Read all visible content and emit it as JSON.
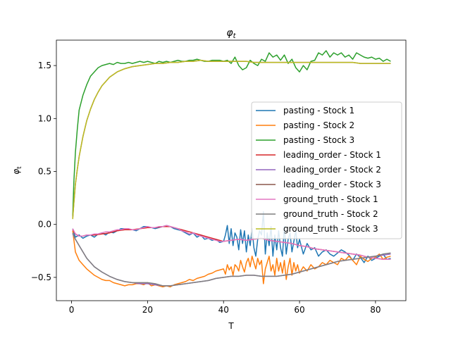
{
  "chart_data": {
    "type": "line",
    "title": "φ",
    "title_sub": "t",
    "xlabel": "T",
    "ylabel": "φ",
    "ylabel_sub": "t",
    "xlim": [
      -4,
      88
    ],
    "ylim": [
      -0.72,
      1.74
    ],
    "xticks": [
      0,
      20,
      40,
      60,
      80
    ],
    "yticks": [
      -0.5,
      0.0,
      0.5,
      1.0,
      1.5
    ],
    "ytick_labels": [
      "−0.5",
      "0.0",
      "0.5",
      "1.0",
      "1.5"
    ],
    "grid": false,
    "legend_position": "center-right",
    "series": [
      {
        "name": "pasting - Stock 1",
        "color": "#1f77b4",
        "x": [
          0.3,
          1,
          2,
          3,
          4,
          5,
          6,
          7,
          8,
          9,
          10,
          11,
          12,
          13,
          14,
          15,
          16,
          17,
          18,
          19,
          20,
          21,
          22,
          23,
          24,
          25,
          26,
          27,
          28,
          29,
          30,
          31,
          32,
          33,
          34,
          35,
          36,
          37,
          38,
          39,
          40,
          40.5,
          41,
          41.5,
          42,
          42.5,
          43,
          43.5,
          44,
          44.5,
          45,
          45.5,
          46,
          46.5,
          47,
          47.5,
          48,
          48.5,
          49,
          49.5,
          50,
          50.5,
          51,
          51.5,
          52,
          52.5,
          53,
          53.5,
          54,
          54.5,
          55,
          55.5,
          56,
          56.5,
          57,
          57.5,
          58,
          58.5,
          59,
          59.5,
          60,
          61,
          62,
          63,
          64,
          65,
          66,
          67,
          68,
          69,
          70,
          71,
          72,
          73,
          74,
          75,
          76,
          77,
          78,
          79,
          80,
          81,
          82,
          83,
          84
        ],
        "y": [
          -0.04,
          -0.12,
          -0.1,
          -0.13,
          -0.11,
          -0.1,
          -0.12,
          -0.09,
          -0.08,
          -0.1,
          -0.07,
          -0.08,
          -0.06,
          -0.04,
          -0.04,
          -0.05,
          -0.05,
          -0.06,
          -0.04,
          -0.02,
          -0.02,
          -0.03,
          -0.04,
          -0.03,
          -0.02,
          -0.01,
          -0.02,
          -0.04,
          -0.05,
          -0.06,
          -0.08,
          -0.1,
          -0.08,
          -0.12,
          -0.1,
          -0.14,
          -0.13,
          -0.15,
          -0.14,
          -0.17,
          -0.16,
          -0.1,
          -0.01,
          -0.18,
          -0.04,
          -0.2,
          -0.08,
          -0.12,
          -0.24,
          -0.05,
          -0.18,
          -0.06,
          -0.26,
          -0.1,
          -0.2,
          -0.04,
          -0.22,
          -0.3,
          -0.14,
          -0.06,
          -0.1,
          0.12,
          -0.28,
          -0.08,
          -0.2,
          -0.02,
          -0.3,
          -0.1,
          -0.24,
          -0.06,
          -0.22,
          -0.3,
          -0.02,
          -0.28,
          -0.14,
          -0.08,
          -0.26,
          -0.16,
          -0.06,
          -0.22,
          -0.14,
          -0.28,
          -0.18,
          -0.24,
          -0.22,
          -0.3,
          -0.26,
          -0.24,
          -0.28,
          -0.3,
          -0.27,
          -0.24,
          -0.26,
          -0.29,
          -0.34,
          -0.28,
          -0.31,
          -0.36,
          -0.3,
          -0.34,
          -0.32,
          -0.3,
          -0.28,
          -0.33,
          -0.32
        ]
      },
      {
        "name": "pasting - Stock 2",
        "color": "#ff7f0e",
        "x": [
          0.3,
          1,
          2,
          3,
          4,
          5,
          6,
          7,
          8,
          9,
          10,
          11,
          12,
          13,
          14,
          15,
          16,
          17,
          18,
          19,
          20,
          21,
          22,
          23,
          24,
          25,
          26,
          27,
          28,
          29,
          30,
          31,
          32,
          33,
          34,
          35,
          36,
          37,
          38,
          39,
          40,
          40.5,
          41,
          41.5,
          42,
          42.5,
          43,
          43.5,
          44,
          44.5,
          45,
          45.5,
          46,
          46.5,
          47,
          47.5,
          48,
          48.5,
          49,
          49.5,
          50,
          50.5,
          51,
          51.5,
          52,
          52.5,
          53,
          53.5,
          54,
          54.5,
          55,
          55.5,
          56,
          56.5,
          57,
          57.5,
          58,
          58.5,
          59,
          59.5,
          60,
          61,
          62,
          63,
          64,
          65,
          66,
          67,
          68,
          69,
          70,
          71,
          72,
          73,
          74,
          75,
          76,
          77,
          78,
          79,
          80,
          81,
          82,
          83,
          84
        ],
        "y": [
          -0.06,
          -0.26,
          -0.34,
          -0.38,
          -0.42,
          -0.45,
          -0.48,
          -0.5,
          -0.52,
          -0.53,
          -0.53,
          -0.55,
          -0.56,
          -0.57,
          -0.58,
          -0.57,
          -0.57,
          -0.56,
          -0.56,
          -0.57,
          -0.55,
          -0.58,
          -0.57,
          -0.58,
          -0.59,
          -0.58,
          -0.59,
          -0.57,
          -0.56,
          -0.55,
          -0.54,
          -0.52,
          -0.53,
          -0.51,
          -0.5,
          -0.49,
          -0.47,
          -0.46,
          -0.44,
          -0.43,
          -0.42,
          -0.47,
          -0.38,
          -0.43,
          -0.4,
          -0.48,
          -0.38,
          -0.4,
          -0.44,
          -0.34,
          -0.4,
          -0.45,
          -0.36,
          -0.32,
          -0.4,
          -0.3,
          -0.36,
          -0.42,
          -0.32,
          -0.38,
          -0.34,
          -0.56,
          -0.42,
          -0.36,
          -0.3,
          -0.44,
          -0.38,
          -0.48,
          -0.32,
          -0.44,
          -0.36,
          -0.46,
          -0.34,
          -0.52,
          -0.4,
          -0.32,
          -0.48,
          -0.36,
          -0.44,
          -0.38,
          -0.46,
          -0.4,
          -0.44,
          -0.38,
          -0.42,
          -0.4,
          -0.36,
          -0.38,
          -0.34,
          -0.36,
          -0.38,
          -0.32,
          -0.34,
          -0.3,
          -0.34,
          -0.38,
          -0.3,
          -0.33,
          -0.35,
          -0.32,
          -0.31,
          -0.28,
          -0.33,
          -0.31,
          -0.3
        ]
      },
      {
        "name": "pasting - Stock 3",
        "color": "#2ca02c",
        "x": [
          0.3,
          0.6,
          1,
          1.5,
          2,
          3,
          4,
          5,
          6,
          7,
          8,
          9,
          10,
          11,
          12,
          13,
          14,
          15,
          16,
          17,
          18,
          19,
          20,
          21,
          22,
          23,
          24,
          25,
          26,
          27,
          28,
          29,
          30,
          31,
          32,
          33,
          34,
          35,
          36,
          37,
          38,
          39,
          40,
          41,
          42,
          43,
          44,
          45,
          46,
          47,
          48,
          49,
          50,
          51,
          52,
          53,
          54,
          55,
          56,
          57,
          58,
          59,
          60,
          61,
          62,
          63,
          64,
          65,
          66,
          67,
          68,
          69,
          70,
          71,
          72,
          73,
          74,
          75,
          76,
          77,
          78,
          79,
          80,
          81,
          82,
          83,
          84
        ],
        "y": [
          0.08,
          0.4,
          0.68,
          0.9,
          1.08,
          1.22,
          1.32,
          1.4,
          1.44,
          1.48,
          1.5,
          1.51,
          1.52,
          1.51,
          1.53,
          1.52,
          1.52,
          1.53,
          1.52,
          1.53,
          1.54,
          1.53,
          1.54,
          1.53,
          1.52,
          1.54,
          1.53,
          1.54,
          1.53,
          1.54,
          1.55,
          1.54,
          1.54,
          1.55,
          1.55,
          1.56,
          1.55,
          1.54,
          1.54,
          1.55,
          1.55,
          1.55,
          1.54,
          1.55,
          1.52,
          1.58,
          1.5,
          1.46,
          1.48,
          1.55,
          1.52,
          1.5,
          1.56,
          1.54,
          1.62,
          1.58,
          1.6,
          1.55,
          1.6,
          1.52,
          1.56,
          1.48,
          1.44,
          1.5,
          1.46,
          1.54,
          1.55,
          1.62,
          1.6,
          1.64,
          1.58,
          1.62,
          1.6,
          1.62,
          1.58,
          1.6,
          1.56,
          1.62,
          1.6,
          1.58,
          1.57,
          1.58,
          1.56,
          1.57,
          1.54,
          1.56,
          1.54
        ]
      },
      {
        "name": "leading_order - Stock 1",
        "color": "#d62728",
        "x": [
          0.3,
          1,
          2,
          3,
          4,
          6,
          8,
          10,
          12,
          14,
          16,
          18,
          20,
          22,
          24,
          26,
          28,
          30,
          32,
          34,
          36,
          38,
          40,
          42,
          44,
          46,
          48,
          50,
          52,
          54,
          56,
          58,
          60,
          62,
          64,
          66,
          68,
          70,
          72,
          74,
          76,
          78,
          80,
          82,
          84
        ],
        "y": [
          -0.05,
          -0.09,
          -0.11,
          -0.11,
          -0.1,
          -0.1,
          -0.09,
          -0.08,
          -0.06,
          -0.05,
          -0.05,
          -0.04,
          -0.03,
          -0.03,
          -0.02,
          -0.02,
          -0.04,
          -0.06,
          -0.08,
          -0.1,
          -0.12,
          -0.14,
          -0.16,
          -0.15,
          -0.14,
          -0.15,
          -0.14,
          -0.13,
          -0.15,
          -0.16,
          -0.17,
          -0.18,
          -0.2,
          -0.21,
          -0.23,
          -0.24,
          -0.25,
          -0.26,
          -0.27,
          -0.28,
          -0.29,
          -0.31,
          -0.32,
          -0.33,
          -0.33
        ]
      },
      {
        "name": "leading_order - Stock 2",
        "color": "#9467bd",
        "x": [
          0.3,
          1,
          2,
          3,
          4,
          6,
          8,
          10,
          12,
          14,
          16,
          18,
          20,
          22,
          24,
          26,
          28,
          30,
          32,
          34,
          36,
          38,
          40,
          42,
          44,
          46,
          48,
          50,
          52,
          54,
          56,
          58,
          60,
          62,
          64,
          66,
          68,
          70,
          72,
          74,
          76,
          78,
          80,
          82,
          84
        ],
        "y": [
          -0.09,
          -0.14,
          -0.2,
          -0.26,
          -0.32,
          -0.4,
          -0.45,
          -0.49,
          -0.52,
          -0.54,
          -0.55,
          -0.56,
          -0.56,
          -0.57,
          -0.58,
          -0.58,
          -0.57,
          -0.56,
          -0.55,
          -0.54,
          -0.53,
          -0.51,
          -0.5,
          -0.49,
          -0.49,
          -0.48,
          -0.48,
          -0.49,
          -0.49,
          -0.49,
          -0.48,
          -0.47,
          -0.45,
          -0.43,
          -0.41,
          -0.39,
          -0.37,
          -0.35,
          -0.34,
          -0.33,
          -0.32,
          -0.31,
          -0.3,
          -0.29,
          -0.28
        ]
      },
      {
        "name": "leading_order - Stock 3",
        "color": "#8c564b",
        "x": [
          0.3,
          0.6,
          1,
          1.5,
          2,
          3,
          4,
          5,
          6,
          7,
          8,
          9,
          10,
          12,
          14,
          16,
          18,
          20,
          22,
          24,
          26,
          28,
          30,
          32,
          34,
          36,
          38,
          40,
          42,
          44,
          46,
          48,
          50,
          52,
          54,
          56,
          58,
          60,
          62,
          64,
          66,
          68,
          70,
          72,
          74,
          76,
          78,
          80,
          82,
          84
        ],
        "y": [
          0.06,
          0.2,
          0.38,
          0.52,
          0.64,
          0.83,
          0.98,
          1.09,
          1.18,
          1.25,
          1.31,
          1.35,
          1.39,
          1.44,
          1.47,
          1.49,
          1.5,
          1.51,
          1.52,
          1.52,
          1.53,
          1.53,
          1.54,
          1.54,
          1.55,
          1.54,
          1.54,
          1.54,
          1.54,
          1.54,
          1.54,
          1.53,
          1.53,
          1.53,
          1.53,
          1.53,
          1.53,
          1.53,
          1.53,
          1.53,
          1.53,
          1.53,
          1.53,
          1.53,
          1.53,
          1.52,
          1.52,
          1.52,
          1.52,
          1.52
        ]
      },
      {
        "name": "ground_truth - Stock 1",
        "color": "#e377c2",
        "x": [
          0.3,
          1,
          2,
          3,
          4,
          5,
          6,
          7,
          8,
          9,
          10,
          11,
          12,
          13,
          14,
          15,
          16,
          17,
          18,
          19,
          20,
          21,
          22,
          23,
          24,
          25,
          26,
          27,
          28,
          29,
          30,
          31,
          32,
          33,
          34,
          35,
          36,
          37,
          38,
          39,
          40,
          42,
          44,
          46,
          48,
          50,
          52,
          54,
          56,
          58,
          60,
          62,
          64,
          66,
          68,
          70,
          72,
          74,
          76,
          78,
          80,
          82,
          84
        ],
        "y": [
          -0.04,
          -0.09,
          -0.11,
          -0.11,
          -0.1,
          -0.1,
          -0.09,
          -0.09,
          -0.08,
          -0.07,
          -0.07,
          -0.06,
          -0.05,
          -0.05,
          -0.04,
          -0.04,
          -0.05,
          -0.05,
          -0.04,
          -0.03,
          -0.02,
          -0.03,
          -0.03,
          -0.02,
          -0.02,
          -0.01,
          -0.02,
          -0.03,
          -0.04,
          -0.06,
          -0.07,
          -0.09,
          -0.08,
          -0.1,
          -0.11,
          -0.12,
          -0.13,
          -0.14,
          -0.15,
          -0.16,
          -0.16,
          -0.15,
          -0.14,
          -0.15,
          -0.14,
          -0.13,
          -0.15,
          -0.16,
          -0.17,
          -0.18,
          -0.2,
          -0.21,
          -0.23,
          -0.24,
          -0.25,
          -0.26,
          -0.27,
          -0.28,
          -0.29,
          -0.31,
          -0.32,
          -0.33,
          -0.33
        ]
      },
      {
        "name": "ground_truth - Stock 2",
        "color": "#7f7f7f",
        "x": [
          0.3,
          1,
          2,
          3,
          4,
          6,
          8,
          10,
          12,
          14,
          16,
          18,
          20,
          22,
          24,
          26,
          28,
          30,
          32,
          34,
          36,
          38,
          40,
          42,
          44,
          46,
          48,
          50,
          52,
          54,
          56,
          58,
          60,
          62,
          64,
          66,
          68,
          70,
          72,
          74,
          76,
          78,
          80,
          82,
          84
        ],
        "y": [
          -0.08,
          -0.14,
          -0.2,
          -0.26,
          -0.32,
          -0.4,
          -0.45,
          -0.49,
          -0.52,
          -0.54,
          -0.55,
          -0.55,
          -0.55,
          -0.56,
          -0.58,
          -0.58,
          -0.57,
          -0.56,
          -0.55,
          -0.54,
          -0.53,
          -0.51,
          -0.5,
          -0.49,
          -0.49,
          -0.48,
          -0.48,
          -0.49,
          -0.49,
          -0.49,
          -0.48,
          -0.47,
          -0.45,
          -0.43,
          -0.41,
          -0.39,
          -0.37,
          -0.35,
          -0.34,
          -0.33,
          -0.32,
          -0.31,
          -0.3,
          -0.28,
          -0.27
        ]
      },
      {
        "name": "ground_truth - Stock 3",
        "color": "#bcbd22",
        "x": [
          0.3,
          0.6,
          1,
          1.5,
          2,
          3,
          4,
          5,
          6,
          7,
          8,
          9,
          10,
          12,
          14,
          16,
          18,
          20,
          22,
          24,
          26,
          28,
          30,
          32,
          34,
          36,
          38,
          40,
          42,
          44,
          46,
          48,
          50,
          52,
          54,
          56,
          58,
          60,
          62,
          64,
          66,
          68,
          70,
          72,
          74,
          76,
          78,
          80,
          82,
          84
        ],
        "y": [
          0.05,
          0.2,
          0.38,
          0.52,
          0.64,
          0.83,
          0.98,
          1.09,
          1.18,
          1.25,
          1.31,
          1.35,
          1.39,
          1.44,
          1.47,
          1.49,
          1.5,
          1.51,
          1.52,
          1.52,
          1.53,
          1.53,
          1.54,
          1.54,
          1.55,
          1.54,
          1.54,
          1.54,
          1.54,
          1.54,
          1.54,
          1.53,
          1.53,
          1.53,
          1.53,
          1.53,
          1.53,
          1.53,
          1.53,
          1.53,
          1.53,
          1.53,
          1.53,
          1.53,
          1.53,
          1.52,
          1.52,
          1.52,
          1.52,
          1.52
        ]
      }
    ]
  }
}
